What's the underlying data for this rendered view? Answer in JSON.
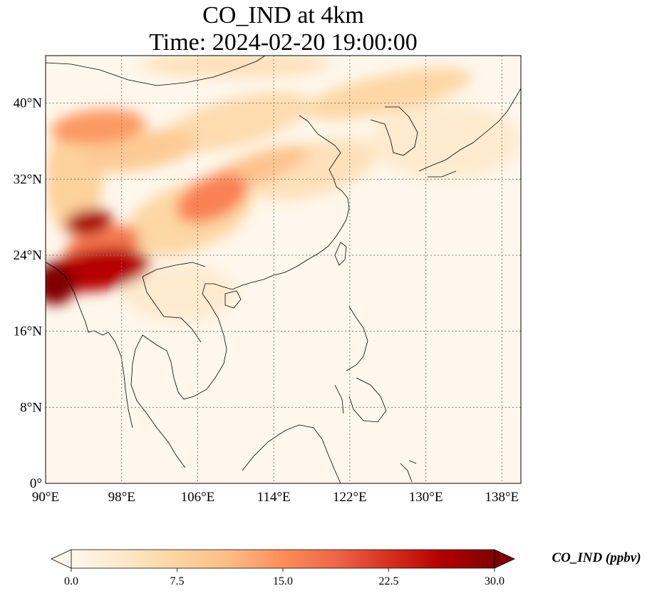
{
  "title": {
    "line1": "CO_IND at 4km",
    "line2": "Time: 2024-02-20 19:00:00"
  },
  "map": {
    "extent": {
      "lon_min": 90,
      "lon_max": 140,
      "lat_min": 0,
      "lat_max": 45
    },
    "gridlines": {
      "style": "dotted",
      "color": "#7f7f7f"
    },
    "lon_ticks": [
      {
        "value": 90,
        "label": "90°E"
      },
      {
        "value": 98,
        "label": "98°E"
      },
      {
        "value": 106,
        "label": "106°E"
      },
      {
        "value": 114,
        "label": "114°E"
      },
      {
        "value": 122,
        "label": "122°E"
      },
      {
        "value": 130,
        "label": "130°E"
      },
      {
        "value": 138,
        "label": "138°E"
      }
    ],
    "lat_ticks": [
      {
        "value": 0,
        "label": "0°"
      },
      {
        "value": 8,
        "label": "8°N"
      },
      {
        "value": 16,
        "label": "16°N"
      },
      {
        "value": 24,
        "label": "24°N"
      },
      {
        "value": 32,
        "label": "32°N"
      },
      {
        "value": 40,
        "label": "40°N"
      }
    ],
    "plumes": [
      {
        "lon": 95.5,
        "lat": 22.5,
        "rx": 5.5,
        "ry": 2.2,
        "value": 26,
        "rot": -8
      },
      {
        "lon": 91.0,
        "lat": 21.0,
        "rx": 2.2,
        "ry": 2.2,
        "value": 30,
        "rot": 0
      },
      {
        "lon": 94.5,
        "lat": 27.5,
        "rx": 2.5,
        "ry": 1.3,
        "value": 27,
        "rot": -10
      },
      {
        "lon": 96.0,
        "lat": 25.0,
        "rx": 4.0,
        "ry": 2.0,
        "value": 17,
        "rot": -15
      },
      {
        "lon": 107.5,
        "lat": 30.0,
        "rx": 4.0,
        "ry": 2.2,
        "value": 16,
        "rot": -25
      },
      {
        "lon": 112.0,
        "lat": 33.0,
        "rx": 6.0,
        "ry": 1.6,
        "value": 10,
        "rot": -20
      },
      {
        "lon": 95.5,
        "lat": 37.5,
        "rx": 5.0,
        "ry": 1.8,
        "value": 14,
        "rot": -5
      },
      {
        "lon": 100.0,
        "lat": 35.0,
        "rx": 6.0,
        "ry": 2.0,
        "value": 9,
        "rot": -10
      },
      {
        "lon": 110.0,
        "lat": 38.0,
        "rx": 8.0,
        "ry": 2.5,
        "value": 6,
        "rot": -15
      },
      {
        "lon": 118.0,
        "lat": 33.0,
        "rx": 7.0,
        "ry": 2.8,
        "value": 5,
        "rot": -15
      },
      {
        "lon": 126.0,
        "lat": 41.0,
        "rx": 9.0,
        "ry": 2.0,
        "value": 7,
        "rot": -12
      },
      {
        "lon": 105.0,
        "lat": 28.0,
        "rx": 7.0,
        "ry": 3.5,
        "value": 7,
        "rot": -20
      },
      {
        "lon": 93.0,
        "lat": 32.0,
        "rx": 3.0,
        "ry": 6.0,
        "value": 8,
        "rot": 0
      },
      {
        "lon": 110.0,
        "lat": 44.0,
        "rx": 10.0,
        "ry": 1.3,
        "value": 5,
        "rot": 0
      },
      {
        "lon": 132.0,
        "lat": 36.0,
        "rx": 8.0,
        "ry": 4.0,
        "value": 3,
        "rot": 0
      },
      {
        "lon": 104.0,
        "lat": 20.0,
        "rx": 6.0,
        "ry": 3.0,
        "value": 3,
        "rot": 0
      }
    ]
  },
  "colorbar": {
    "cmap": "OrRd",
    "vmin": 0,
    "vmax": 30,
    "extend": "both",
    "ticks": [
      {
        "value": 0,
        "label": "0.0"
      },
      {
        "value": 7.5,
        "label": "7.5"
      },
      {
        "value": 15,
        "label": "15.0"
      },
      {
        "value": 22.5,
        "label": "22.5"
      },
      {
        "value": 30,
        "label": "30.0"
      }
    ],
    "label": "CO_IND (ppbv)",
    "colors": [
      "#fff7ec",
      "#fee8c8",
      "#fdd49e",
      "#fdbb84",
      "#fc8d59",
      "#ef6548",
      "#d7301f",
      "#b30000",
      "#7f0000"
    ]
  }
}
